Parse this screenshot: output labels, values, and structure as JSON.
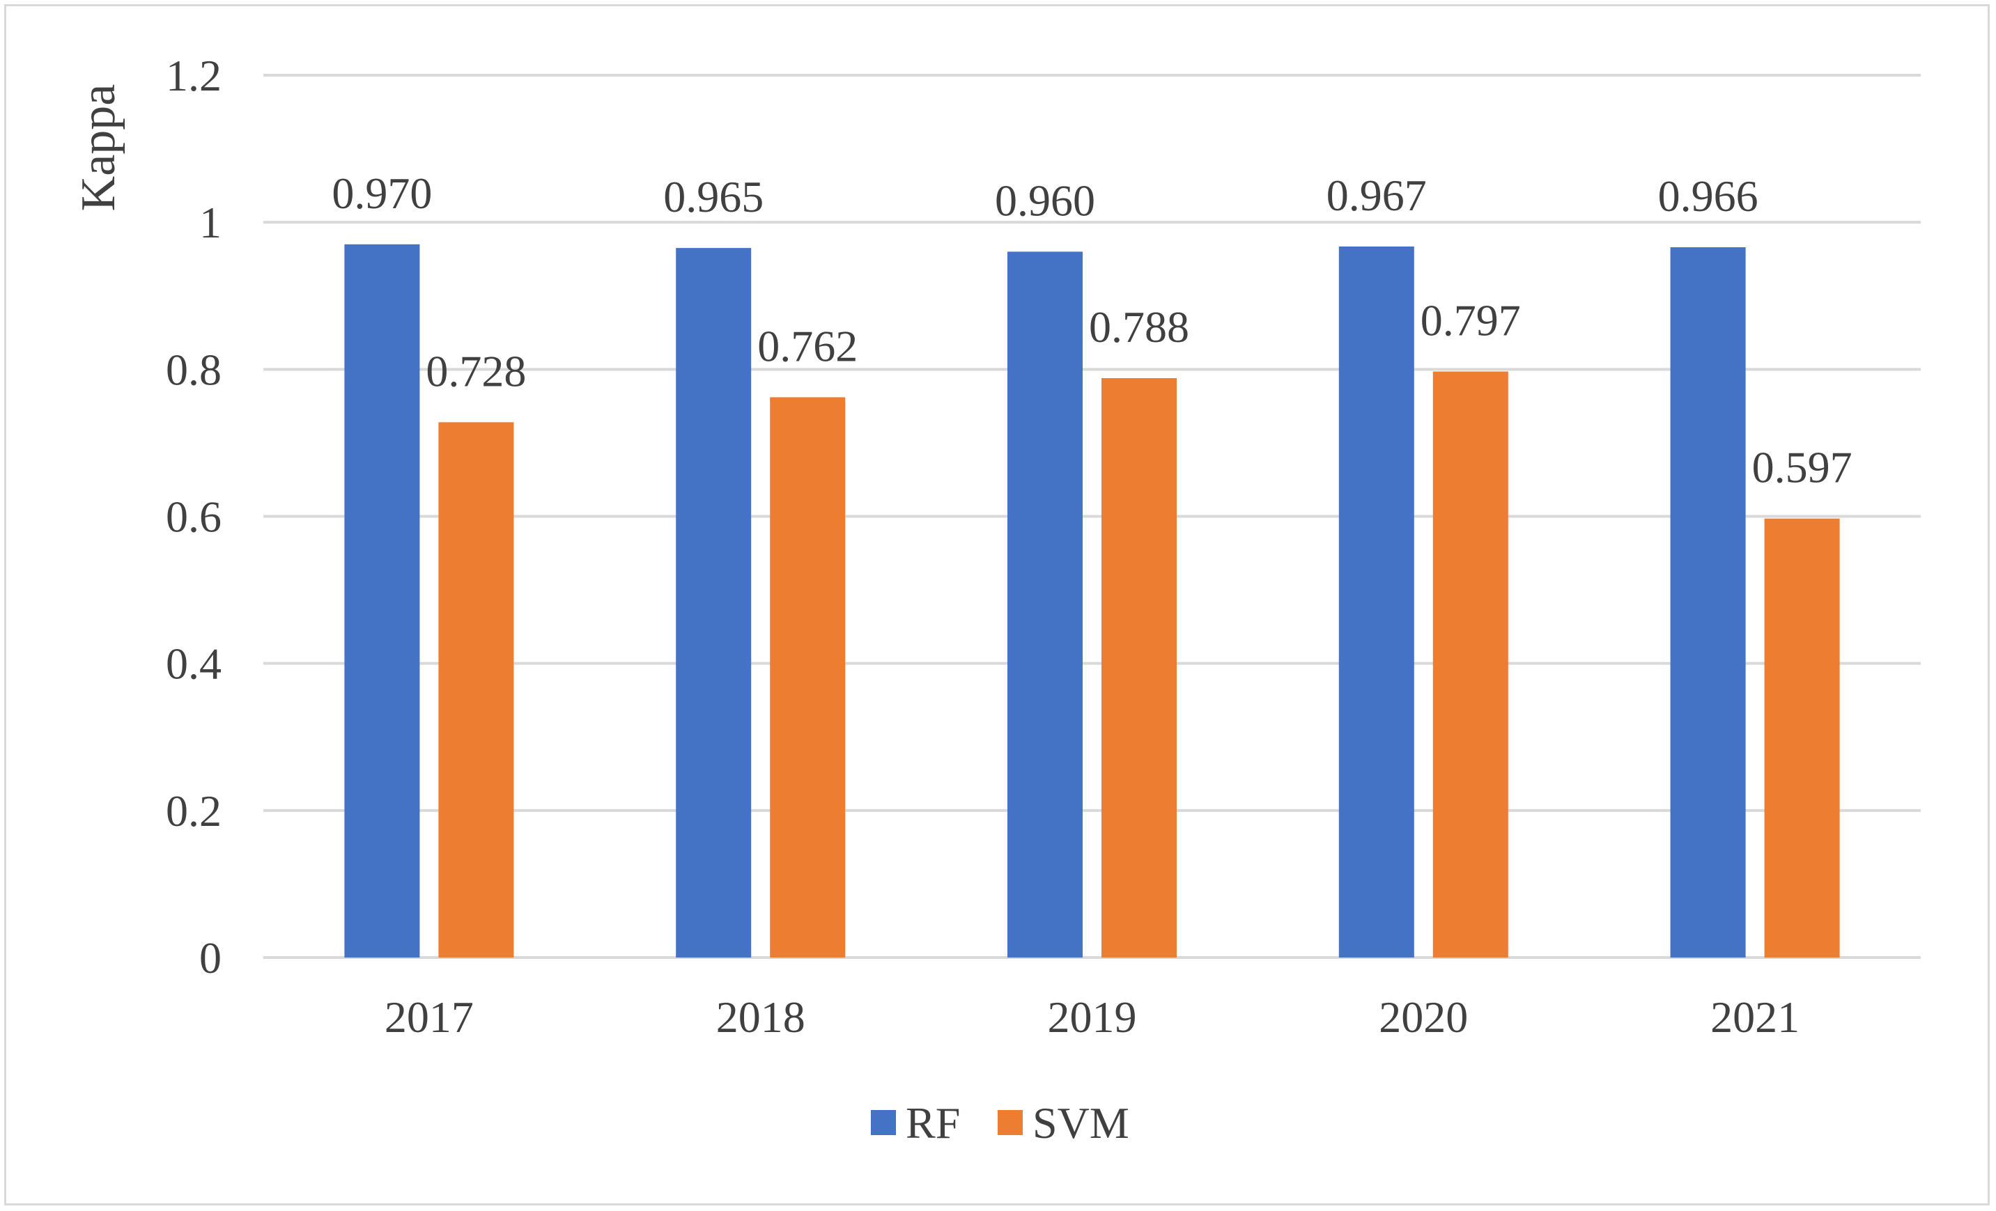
{
  "chart_data": {
    "type": "bar",
    "title": "",
    "xlabel": "",
    "ylabel": "Kappa",
    "ylim": [
      0,
      1.2
    ],
    "yticks": [
      0,
      0.2,
      0.4,
      0.6,
      0.8,
      1,
      1.2
    ],
    "ytick_labels": [
      "0",
      "0.2",
      "0.4",
      "0.6",
      "0.8",
      "1",
      "1.2"
    ],
    "grid": true,
    "legend_position": "bottom-center",
    "categories": [
      "2017",
      "2018",
      "2019",
      "2020",
      "2021"
    ],
    "series": [
      {
        "name": "RF",
        "color": "#4472c4",
        "values": [
          0.97,
          0.965,
          0.96,
          0.967,
          0.966
        ],
        "labels": [
          "0.970",
          "0.965",
          "0.960",
          "0.967",
          "0.966"
        ]
      },
      {
        "name": "SVM",
        "color": "#ed7d31",
        "values": [
          0.728,
          0.762,
          0.788,
          0.797,
          0.597
        ],
        "labels": [
          "0.728",
          "0.762",
          "0.788",
          "0.797",
          "0.597"
        ]
      }
    ]
  }
}
